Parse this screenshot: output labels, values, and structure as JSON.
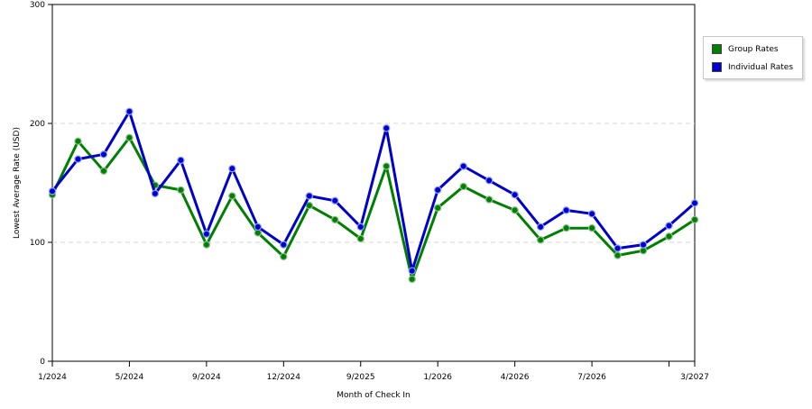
{
  "chart_data": {
    "type": "line",
    "title": "",
    "xlabel": "Month of Check In",
    "ylabel": "Lowest Average Rate (USD)",
    "ylim": [
      0,
      300
    ],
    "y_ticks": [
      "0",
      "100",
      "200",
      "300"
    ],
    "x_tick_labels": [
      "1/2024",
      "5/2024",
      "9/2024",
      "12/2024",
      "9/2025",
      "1/2026",
      "4/2026",
      "7/2026",
      "3/2027"
    ],
    "grid": "horizontal dashed",
    "legend_position": "right",
    "series": [
      {
        "name": "Group Rates",
        "color": "#008000",
        "values": [
          140,
          185,
          160,
          188,
          148,
          144,
          98,
          139,
          108,
          88,
          131,
          119,
          103,
          164,
          69,
          129,
          147,
          136,
          127,
          102,
          112,
          112,
          89,
          93,
          105,
          119
        ]
      },
      {
        "name": "Individual Rates",
        "color": "#0000cc",
        "values": [
          143,
          170,
          174,
          210,
          141,
          169,
          107,
          162,
          113,
          98,
          139,
          135,
          113,
          196,
          76,
          144,
          164,
          152,
          140,
          113,
          127,
          124,
          95,
          98,
          114,
          133
        ]
      }
    ]
  }
}
